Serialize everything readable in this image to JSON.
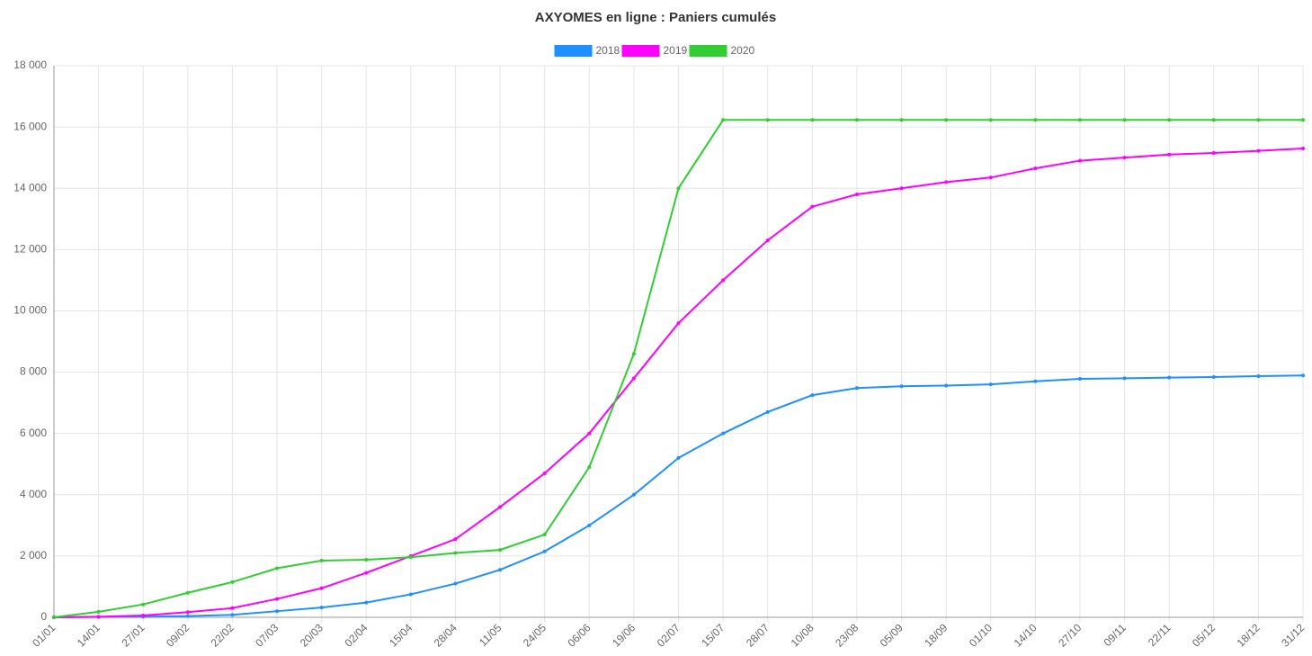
{
  "chart_data": {
    "type": "line",
    "title": "AXYOMES en ligne : Paniers  cumulés",
    "categories": [
      "01/01",
      "14/01",
      "27/01",
      "09/02",
      "22/02",
      "07/03",
      "20/03",
      "02/04",
      "15/04",
      "28/04",
      "11/05",
      "24/05",
      "06/06",
      "19/06",
      "02/07",
      "15/07",
      "28/07",
      "10/08",
      "23/08",
      "05/09",
      "18/09",
      "01/10",
      "14/10",
      "27/10",
      "09/11",
      "22/11",
      "05/12",
      "18/12",
      "31/12"
    ],
    "series": [
      {
        "name": "2018",
        "color": "#1e90ff",
        "values": [
          0,
          10,
          20,
          40,
          80,
          200,
          320,
          480,
          750,
          1100,
          1550,
          2150,
          3000,
          4000,
          5200,
          6000,
          6700,
          7250,
          7480,
          7540,
          7560,
          7600,
          7700,
          7780,
          7800,
          7820,
          7840,
          7870,
          7890
        ]
      },
      {
        "name": "2019",
        "color": "#ff00ff",
        "values": [
          0,
          20,
          60,
          170,
          300,
          600,
          950,
          1450,
          2000,
          2550,
          3600,
          4700,
          6000,
          7800,
          9600,
          11000,
          12300,
          13400,
          13800,
          14000,
          14200,
          14350,
          14650,
          14900,
          15000,
          15100,
          15150,
          15220,
          15300
        ]
      },
      {
        "name": "2020",
        "color": "#32cd32",
        "values": [
          0,
          180,
          420,
          800,
          1150,
          1600,
          1850,
          1880,
          1960,
          2100,
          2200,
          2700,
          4900,
          8600,
          14000,
          16230,
          16230,
          16230,
          16230,
          16230,
          16230,
          16230,
          16230,
          16230,
          16230,
          16230,
          16230,
          16230,
          16230
        ]
      }
    ],
    "ylim": [
      0,
      18000
    ],
    "yticks": [
      0,
      {
        "value": 2000,
        "label": "2 000"
      },
      {
        "value": 4000,
        "label": "4 000"
      },
      {
        "value": 6000,
        "label": "6 000"
      },
      {
        "value": 8000,
        "label": "8 000"
      },
      {
        "value": 10000,
        "label": "10 000"
      },
      {
        "value": 12000,
        "label": "12 000"
      },
      {
        "value": 14000,
        "label": "14 000"
      },
      {
        "value": 16000,
        "label": "16 000"
      },
      {
        "value": 18000,
        "label": "18 000"
      }
    ],
    "grid": true
  }
}
